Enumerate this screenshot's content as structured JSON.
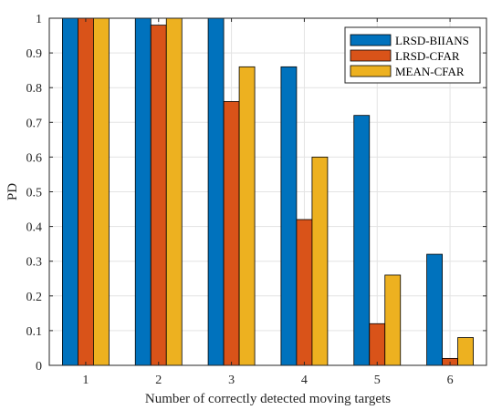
{
  "chart_data": {
    "type": "bar",
    "title": "",
    "xlabel": "Number of correctly detected moving targets",
    "ylabel": "PD",
    "categories": [
      "1",
      "2",
      "3",
      "4",
      "5",
      "6"
    ],
    "ylim": [
      0,
      1
    ],
    "yticks": [
      "0",
      "0.1",
      "0.2",
      "0.3",
      "0.4",
      "0.5",
      "0.6",
      "0.7",
      "0.8",
      "0.9",
      "1"
    ],
    "grid": true,
    "legend_position": "top-right",
    "series": [
      {
        "name": "LRSD-BIIANS",
        "color": "#0072BD",
        "values": [
          1.0,
          1.0,
          1.0,
          0.86,
          0.72,
          0.32
        ]
      },
      {
        "name": "LRSD-CFAR",
        "color": "#D95319",
        "values": [
          1.0,
          0.98,
          0.76,
          0.42,
          0.12,
          0.02
        ]
      },
      {
        "name": "MEAN-CFAR",
        "color": "#EDB120",
        "values": [
          1.0,
          1.0,
          0.86,
          0.6,
          0.26,
          0.08
        ]
      }
    ]
  }
}
